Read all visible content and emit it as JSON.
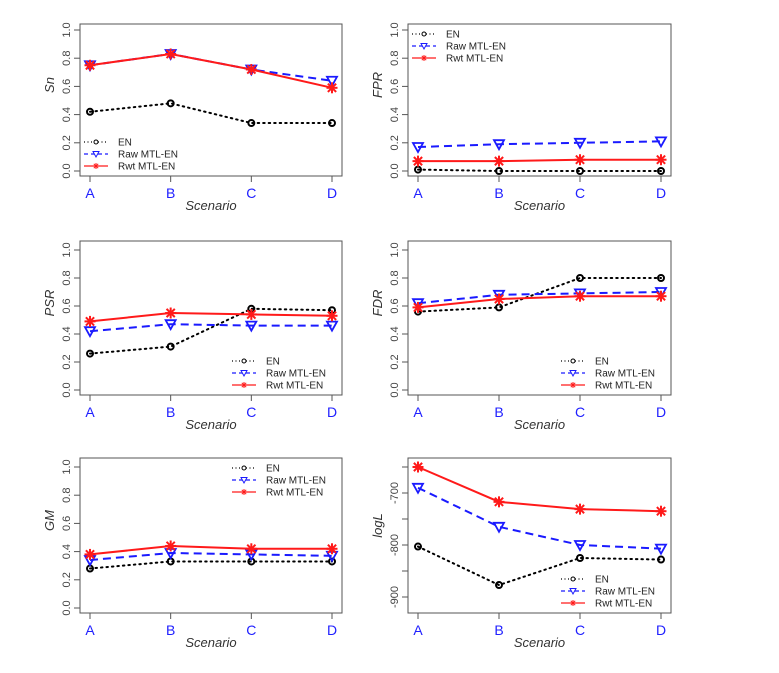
{
  "chart_data": [
    {
      "type": "line",
      "ylabel": "Sn",
      "xlabel": "Scenario",
      "categories": [
        "A",
        "B",
        "C",
        "D"
      ],
      "ylim": [
        0,
        1
      ],
      "yticks": [
        "0.0",
        "0.2",
        "0.4",
        "0.6",
        "0.8",
        "1.0"
      ],
      "legend": "bottom-left",
      "series": [
        {
          "name": "EN",
          "values": [
            0.42,
            0.48,
            0.34,
            0.34
          ]
        },
        {
          "name": "Raw MTL-EN",
          "values": [
            0.75,
            0.83,
            0.72,
            0.64
          ]
        },
        {
          "name": "Rwt MTL-EN",
          "values": [
            0.75,
            0.83,
            0.72,
            0.59
          ]
        }
      ]
    },
    {
      "type": "line",
      "ylabel": "FPR",
      "xlabel": "Scenario",
      "categories": [
        "A",
        "B",
        "C",
        "D"
      ],
      "ylim": [
        0,
        1
      ],
      "yticks": [
        "0.0",
        "0.2",
        "0.4",
        "0.6",
        "0.8",
        "1.0"
      ],
      "legend": "top-left",
      "series": [
        {
          "name": "EN",
          "values": [
            0.01,
            0.0,
            0.0,
            0.0
          ]
        },
        {
          "name": "Raw MTL-EN",
          "values": [
            0.17,
            0.19,
            0.2,
            0.21
          ]
        },
        {
          "name": "Rwt MTL-EN",
          "values": [
            0.07,
            0.07,
            0.08,
            0.08
          ]
        }
      ]
    },
    {
      "type": "line",
      "ylabel": "PSR",
      "xlabel": "Scenario",
      "categories": [
        "A",
        "B",
        "C",
        "D"
      ],
      "ylim": [
        0,
        1
      ],
      "yticks": [
        "0.0",
        "0.2",
        "0.4",
        "0.6",
        "0.8",
        "1.0"
      ],
      "legend": "bottom-right",
      "series": [
        {
          "name": "EN",
          "values": [
            0.26,
            0.31,
            0.58,
            0.57
          ]
        },
        {
          "name": "Raw MTL-EN",
          "values": [
            0.42,
            0.47,
            0.46,
            0.46
          ]
        },
        {
          "name": "Rwt MTL-EN",
          "values": [
            0.49,
            0.55,
            0.54,
            0.53
          ]
        }
      ]
    },
    {
      "type": "line",
      "ylabel": "FDR",
      "xlabel": "Scenario",
      "categories": [
        "A",
        "B",
        "C",
        "D"
      ],
      "ylim": [
        0,
        1
      ],
      "yticks": [
        "0.0",
        "0.2",
        "0.4",
        "0.6",
        "0.8",
        "1.0"
      ],
      "legend": "bottom-right",
      "series": [
        {
          "name": "EN",
          "values": [
            0.56,
            0.59,
            0.8,
            0.8
          ]
        },
        {
          "name": "Raw MTL-EN",
          "values": [
            0.62,
            0.68,
            0.69,
            0.7
          ]
        },
        {
          "name": "Rwt MTL-EN",
          "values": [
            0.59,
            0.65,
            0.67,
            0.67
          ]
        }
      ]
    },
    {
      "type": "line",
      "ylabel": "GM",
      "xlabel": "Scenario",
      "categories": [
        "A",
        "B",
        "C",
        "D"
      ],
      "ylim": [
        0,
        1
      ],
      "yticks": [
        "0.0",
        "0.2",
        "0.4",
        "0.6",
        "0.8",
        "1.0"
      ],
      "legend": "top-right",
      "series": [
        {
          "name": "EN",
          "values": [
            0.28,
            0.33,
            0.33,
            0.33
          ]
        },
        {
          "name": "Raw MTL-EN",
          "values": [
            0.34,
            0.39,
            0.38,
            0.37
          ]
        },
        {
          "name": "Rwt MTL-EN",
          "values": [
            0.38,
            0.44,
            0.42,
            0.42
          ]
        }
      ]
    },
    {
      "type": "line",
      "ylabel": "logL",
      "xlabel": "Scenario",
      "categories": [
        "A",
        "B",
        "C",
        "D"
      ],
      "ylim": [
        -920,
        -640
      ],
      "yticks": [
        "-650",
        "-700",
        "-750",
        "-800",
        "-850",
        "-900"
      ],
      "ytick_labels_shown": [
        "-700",
        "-800",
        "-900"
      ],
      "legend": "bottom-right",
      "series": [
        {
          "name": "EN",
          "values": [
            -803,
            -877,
            -825,
            -828
          ]
        },
        {
          "name": "Raw MTL-EN",
          "values": [
            -690,
            -765,
            -800,
            -807
          ]
        },
        {
          "name": "Rwt MTL-EN",
          "values": [
            -650,
            -717,
            -731,
            -735
          ]
        }
      ]
    }
  ],
  "series_styles": [
    {
      "name": "EN",
      "color": "#000000",
      "dash": "dotted",
      "marker": "circle"
    },
    {
      "name": "Raw MTL-EN",
      "color": "#1a1aff",
      "dash": "dashed",
      "marker": "triangle-down"
    },
    {
      "name": "Rwt MTL-EN",
      "color": "#ff1a1a",
      "dash": "solid",
      "marker": "asterisk"
    }
  ]
}
